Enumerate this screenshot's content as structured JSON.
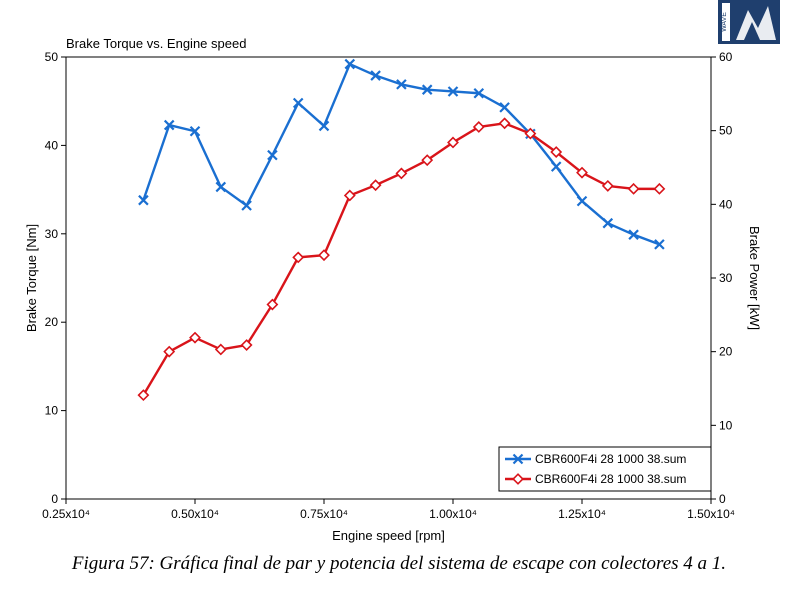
{
  "figure": {
    "title": "Brake Torque vs. Engine speed",
    "caption": "Figura 57: Gráfica final de par y potencia del sistema de escape con colectores 4 a 1."
  },
  "logo": {
    "name": "watermark-logo",
    "text": "WAVE"
  },
  "chart_data": {
    "type": "line",
    "title": "Brake Torque vs. Engine speed",
    "xlabel": "Engine speed  [rpm]",
    "ylabel": "Brake Torque  [Nm]",
    "y2label": "Brake Power  [kW]",
    "xlim": [
      2500,
      15000
    ],
    "ylim": [
      0,
      50
    ],
    "y2lim": [
      0,
      60
    ],
    "xticks": [
      {
        "value": 2500,
        "label": "0.25x10⁴"
      },
      {
        "value": 5000,
        "label": "0.50x10⁴"
      },
      {
        "value": 7500,
        "label": "0.75x10⁴"
      },
      {
        "value": 10000,
        "label": "1.00x10⁴"
      },
      {
        "value": 12500,
        "label": "1.25x10⁴"
      },
      {
        "value": 15000,
        "label": "1.50x10⁴"
      }
    ],
    "yticks": [
      0,
      10,
      20,
      30,
      40,
      50
    ],
    "y2ticks": [
      0,
      10,
      20,
      30,
      40,
      50,
      60
    ],
    "grid": false,
    "legend_position": "bottom-right",
    "series": [
      {
        "name": "CBR600F4i 28 1000 38.sum",
        "axis": "left",
        "color": "#1a6fd1",
        "marker": "x",
        "x": [
          4000,
          4500,
          5000,
          5500,
          6000,
          6500,
          7000,
          7500,
          8000,
          8500,
          9000,
          9500,
          10000,
          10500,
          11000,
          11500,
          12000,
          12500,
          13000,
          13500,
          14000
        ],
        "values": [
          33.8,
          42.3,
          41.6,
          35.3,
          33.2,
          38.9,
          44.8,
          42.2,
          49.2,
          47.9,
          46.9,
          46.3,
          46.1,
          45.9,
          44.3,
          41.3,
          37.6,
          33.7,
          31.2,
          29.9,
          28.8
        ]
      },
      {
        "name": "CBR600F4i 28 1000 38.sum",
        "axis": "right",
        "color": "#d9141a",
        "marker": "diamond",
        "x": [
          4000,
          4500,
          5000,
          5500,
          6000,
          6500,
          7000,
          7500,
          8000,
          8500,
          9000,
          9500,
          10000,
          10500,
          11000,
          11500,
          12000,
          12500,
          13000,
          13500,
          14000
        ],
        "values": [
          14.1,
          20.0,
          21.9,
          20.3,
          20.9,
          26.4,
          32.8,
          33.1,
          41.2,
          42.6,
          44.2,
          46.0,
          48.4,
          50.5,
          51.0,
          49.6,
          47.1,
          44.3,
          42.5,
          42.1,
          42.1
        ]
      }
    ]
  }
}
